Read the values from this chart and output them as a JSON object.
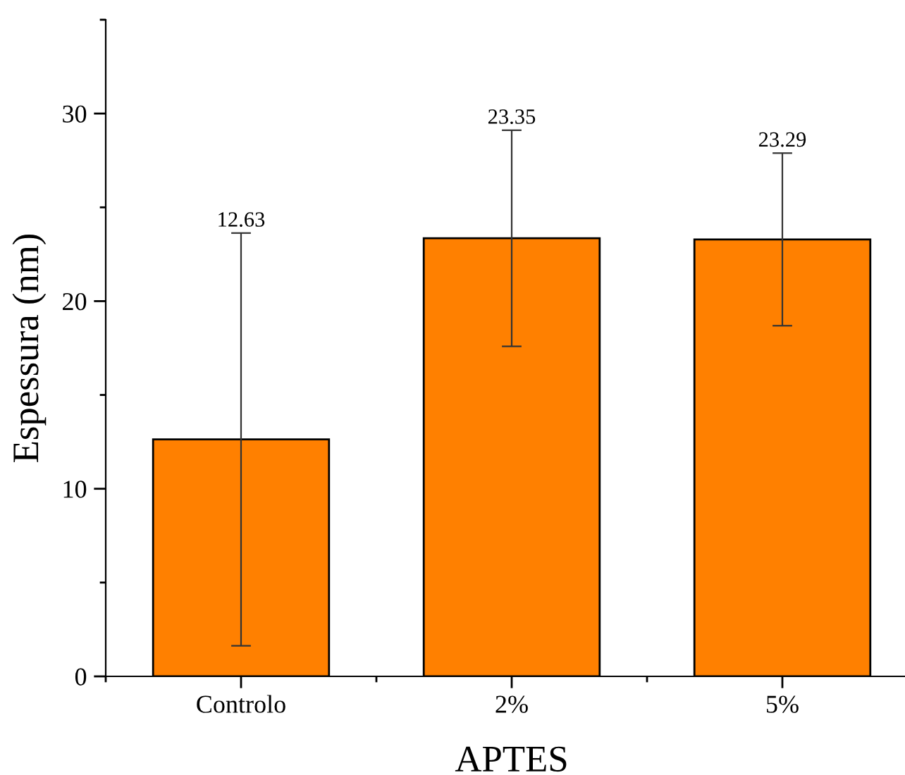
{
  "chart_data": {
    "type": "bar",
    "xlabel": "APTES",
    "ylabel": "Espessura (nm)",
    "categories": [
      "Controlo",
      "2%",
      "5%"
    ],
    "values": [
      12.63,
      23.35,
      23.29
    ],
    "errors": [
      11.0,
      5.76,
      4.6
    ],
    "color": "#ff8000",
    "ylim": [
      0,
      35
    ],
    "yticks": [
      0,
      10,
      20,
      30
    ],
    "annotations": [
      {
        "text": "12.63",
        "x": "Controlo",
        "y": 23.63
      },
      {
        "text": "23.35",
        "x": "2%",
        "y": 29.11
      },
      {
        "text": "23.29",
        "x": "5%",
        "y": 27.89
      }
    ],
    "grid": false
  }
}
